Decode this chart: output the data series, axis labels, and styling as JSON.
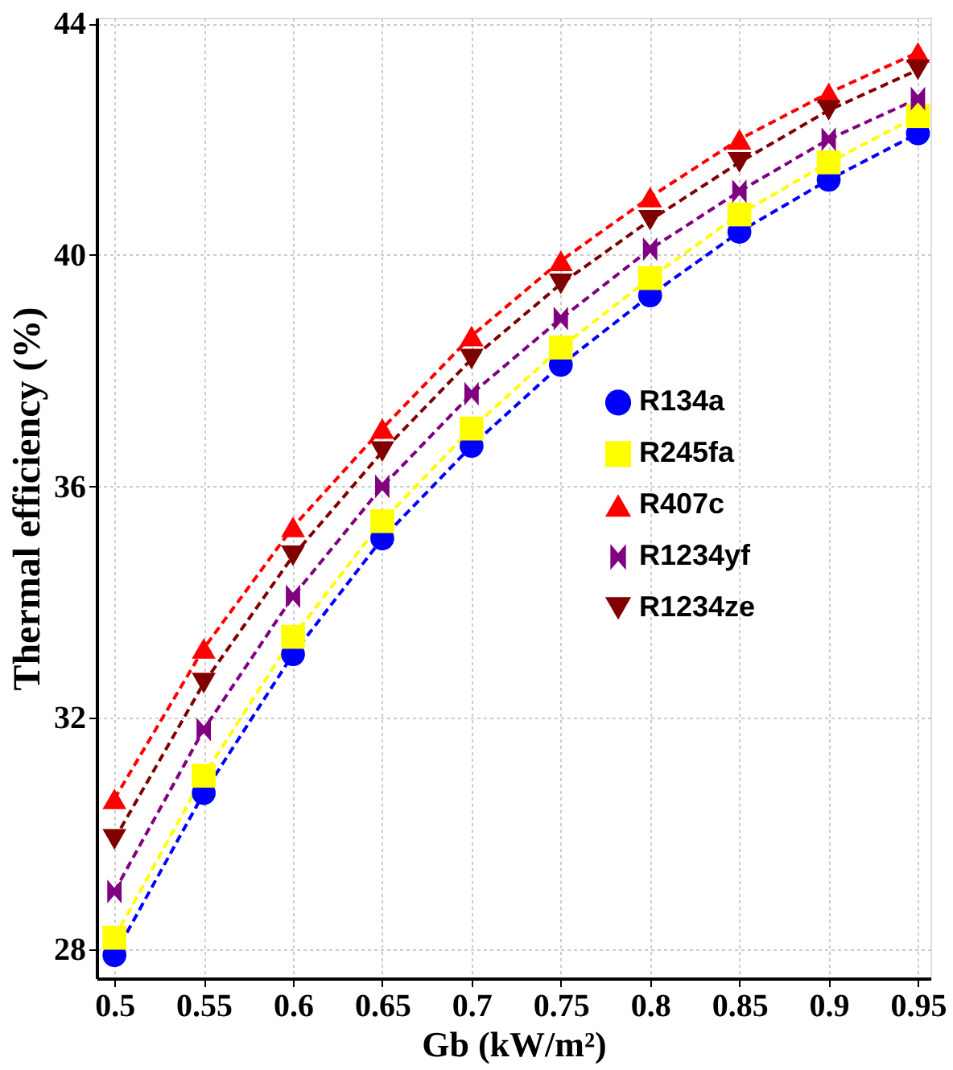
{
  "chart_data": {
    "type": "line",
    "xlabel": "Gb (kW/m²)",
    "ylabel": "Thermal efficiency (%)",
    "x": [
      0.5,
      0.55,
      0.6,
      0.65,
      0.7,
      0.75,
      0.8,
      0.85,
      0.9,
      0.95
    ],
    "series": [
      {
        "name": "R134a",
        "color": "#0000ff",
        "marker": "circle",
        "values": [
          27.9,
          30.7,
          33.1,
          35.1,
          36.7,
          38.1,
          39.3,
          40.4,
          41.3,
          42.1
        ]
      },
      {
        "name": "R245fa",
        "color": "#ffff00",
        "marker": "square",
        "values": [
          28.2,
          31.0,
          33.4,
          35.4,
          37.0,
          38.4,
          39.6,
          40.7,
          41.6,
          42.4
        ]
      },
      {
        "name": "R407c",
        "color": "#ff0000",
        "marker": "triangle",
        "values": [
          30.6,
          33.2,
          35.3,
          37.0,
          38.6,
          39.9,
          41.0,
          42.0,
          42.8,
          43.5
        ]
      },
      {
        "name": "R1234yf",
        "color": "#800080",
        "marker": "cross",
        "values": [
          29.0,
          31.8,
          34.1,
          36.0,
          37.6,
          38.9,
          40.1,
          41.1,
          42.0,
          42.7
        ]
      },
      {
        "name": "R1234ze",
        "color": "#800000",
        "marker": "triangle-down",
        "values": [
          29.9,
          32.6,
          34.8,
          36.6,
          38.2,
          39.5,
          40.6,
          41.6,
          42.5,
          43.2
        ]
      }
    ],
    "xlim": [
      0.49,
      0.957
    ],
    "ylim": [
      27.5,
      44.1
    ],
    "xticks": [
      {
        "value": 0.5,
        "label": "0.5"
      },
      0.55,
      {
        "value": 0.6,
        "label": "0.6"
      },
      0.65,
      {
        "value": 0.7,
        "label": "0.7"
      },
      0.75,
      {
        "value": 0.8,
        "label": "0.8"
      },
      0.85,
      {
        "value": 0.9,
        "label": "0.9"
      },
      0.95
    ],
    "yticks": [
      28,
      32,
      36,
      40,
      44
    ],
    "grid": true,
    "legend": "right",
    "line_style": "dashed"
  }
}
